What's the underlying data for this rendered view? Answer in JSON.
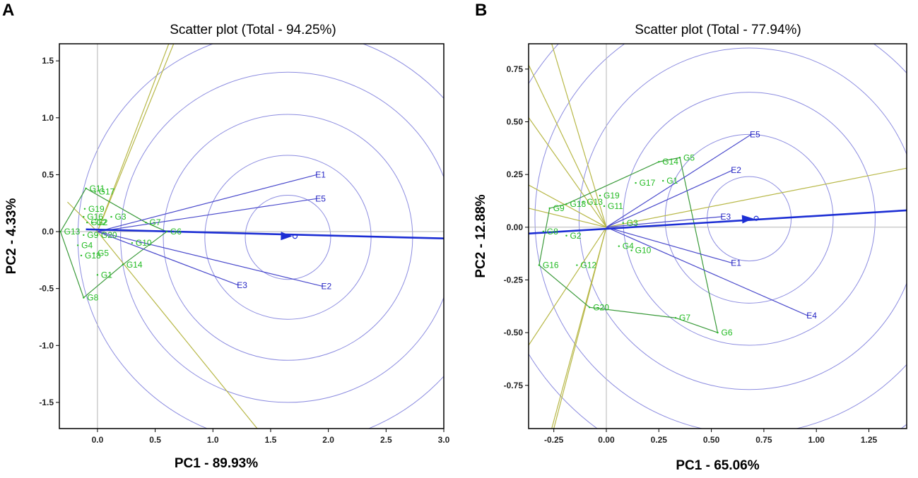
{
  "chart_data": [
    {
      "panel": "A",
      "type": "scatter",
      "subtype": "gge-biplot-which-won-where",
      "title": "Scatter plot (Total - 94.25%)",
      "xlabel": "PC1 - 89.93%",
      "ylabel": "PC2 - 4.33%",
      "xlim": [
        -0.33,
        3.0
      ],
      "ylim": [
        -1.73,
        1.65
      ],
      "xticks": [
        {
          "v": 0,
          "t": "0.0"
        },
        {
          "v": 0.5,
          "t": "0.5"
        },
        {
          "v": 1,
          "t": "1.0"
        },
        {
          "v": 1.5,
          "t": "1.5"
        },
        {
          "v": 2,
          "t": "2.0"
        },
        {
          "v": 2.5,
          "t": "2.5"
        },
        {
          "v": 3,
          "t": "3.0"
        }
      ],
      "yticks": [
        {
          "v": -1.5,
          "t": "-1.5"
        },
        {
          "v": -1,
          "t": "-1.0"
        },
        {
          "v": -0.5,
          "t": "-0.5"
        },
        {
          "v": 0,
          "t": "0.0"
        },
        {
          "v": 0.5,
          "t": "0.5"
        },
        {
          "v": 1,
          "t": "1.0"
        },
        {
          "v": 1.5,
          "t": "1.5"
        }
      ],
      "circle_center": [
        1.65,
        -0.05
      ],
      "circle_radii": [
        0.37,
        0.72,
        1.08,
        1.45,
        1.82
      ],
      "genotypes": [
        {
          "label": "G11",
          "x": -0.1,
          "y": 0.38
        },
        {
          "label": "G17",
          "x": -0.02,
          "y": 0.35
        },
        {
          "label": "G19",
          "x": -0.11,
          "y": 0.2
        },
        {
          "label": "G16",
          "x": -0.12,
          "y": 0.13
        },
        {
          "label": "G3",
          "x": 0.12,
          "y": 0.13
        },
        {
          "label": "G12",
          "x": -0.09,
          "y": 0.08
        },
        {
          "label": "G2",
          "x": -0.04,
          "y": 0.08
        },
        {
          "label": "G7",
          "x": 0.42,
          "y": 0.08
        },
        {
          "label": "G6",
          "x": 0.6,
          "y": 0.0
        },
        {
          "label": "G13",
          "x": -0.32,
          "y": 0.0
        },
        {
          "label": "G9",
          "x": -0.12,
          "y": -0.03
        },
        {
          "label": "G20",
          "x": 0.0,
          "y": -0.03
        },
        {
          "label": "G10",
          "x": 0.3,
          "y": -0.1
        },
        {
          "label": "G4",
          "x": -0.17,
          "y": -0.12
        },
        {
          "label": "G18",
          "x": -0.14,
          "y": -0.21
        },
        {
          "label": "G5",
          "x": -0.03,
          "y": -0.19
        },
        {
          "label": "G14",
          "x": 0.22,
          "y": -0.29
        },
        {
          "label": "G1",
          "x": 0.0,
          "y": -0.38
        },
        {
          "label": "G8",
          "x": -0.12,
          "y": -0.58
        }
      ],
      "environments": [
        {
          "label": "E1",
          "x": 1.9,
          "y": 0.5
        },
        {
          "label": "E5",
          "x": 1.9,
          "y": 0.29
        },
        {
          "label": "E3",
          "x": 1.22,
          "y": -0.47
        },
        {
          "label": "E2",
          "x": 1.95,
          "y": -0.48
        }
      ],
      "hull": [
        "G11",
        "G7",
        "G6",
        "G14",
        "G8",
        "G13"
      ],
      "sectors": [
        [
          0.78,
          1.95
        ],
        [
          0.73,
          1.95
        ],
        [
          -0.26,
          0.26
        ],
        [
          1.4,
          -1.75
        ]
      ],
      "ate": {
        "from": [
          -0.1,
          0.02
        ],
        "to": [
          3.0,
          -0.06
        ],
        "marker": [
          1.65,
          -0.04
        ]
      }
    },
    {
      "panel": "B",
      "type": "scatter",
      "subtype": "gge-biplot-which-won-where",
      "title": "Scatter plot (Total - 77.94%)",
      "xlabel": "PC1 - 65.06%",
      "ylabel": "PC2 - 12.88%",
      "xlim": [
        -0.37,
        1.43
      ],
      "ylim": [
        -0.955,
        0.87
      ],
      "xticks": [
        {
          "v": -0.25,
          "t": "-0.25"
        },
        {
          "v": 0,
          "t": "0.00"
        },
        {
          "v": 0.25,
          "t": "0.25"
        },
        {
          "v": 0.5,
          "t": "0.50"
        },
        {
          "v": 0.75,
          "t": "0.75"
        },
        {
          "v": 1,
          "t": "1.00"
        },
        {
          "v": 1.25,
          "t": "1.25"
        }
      ],
      "yticks": [
        {
          "v": -0.75,
          "t": "-0.75"
        },
        {
          "v": -0.5,
          "t": "-0.50"
        },
        {
          "v": -0.25,
          "t": "-0.25"
        },
        {
          "v": 0,
          "t": "0.00"
        },
        {
          "v": 0.25,
          "t": "0.25"
        },
        {
          "v": 0.5,
          "t": "0.50"
        },
        {
          "v": 0.75,
          "t": "0.75"
        }
      ],
      "circle_center": [
        0.68,
        0.04
      ],
      "circle_radii": [
        0.2,
        0.4,
        0.6,
        0.81,
        1.02,
        1.23
      ],
      "genotypes": [
        {
          "label": "G14",
          "x": 0.25,
          "y": 0.31
        },
        {
          "label": "G5",
          "x": 0.35,
          "y": 0.33
        },
        {
          "label": "G17",
          "x": 0.14,
          "y": 0.21
        },
        {
          "label": "G1",
          "x": 0.27,
          "y": 0.22
        },
        {
          "label": "G19",
          "x": -0.03,
          "y": 0.15
        },
        {
          "label": "G13",
          "x": -0.11,
          "y": 0.12
        },
        {
          "label": "G18",
          "x": -0.19,
          "y": 0.11
        },
        {
          "label": "G11",
          "x": -0.01,
          "y": 0.1
        },
        {
          "label": "G9",
          "x": -0.27,
          "y": 0.09
        },
        {
          "label": "G3",
          "x": 0.08,
          "y": 0.02
        },
        {
          "label": "G8",
          "x": -0.3,
          "y": -0.02
        },
        {
          "label": "G2",
          "x": -0.19,
          "y": -0.04
        },
        {
          "label": "G4",
          "x": 0.06,
          "y": -0.09
        },
        {
          "label": "G10",
          "x": 0.12,
          "y": -0.11
        },
        {
          "label": "G16",
          "x": -0.32,
          "y": -0.18
        },
        {
          "label": "G12",
          "x": -0.14,
          "y": -0.18
        },
        {
          "label": "G20",
          "x": -0.08,
          "y": -0.38
        },
        {
          "label": "G7",
          "x": 0.33,
          "y": -0.43
        },
        {
          "label": "G6",
          "x": 0.53,
          "y": -0.5
        }
      ],
      "environments": [
        {
          "label": "E5",
          "x": 0.69,
          "y": 0.44
        },
        {
          "label": "E2",
          "x": 0.6,
          "y": 0.27
        },
        {
          "label": "E3",
          "x": 0.55,
          "y": 0.05
        },
        {
          "label": "E1",
          "x": 0.6,
          "y": -0.17
        },
        {
          "label": "E4",
          "x": 0.96,
          "y": -0.42
        }
      ],
      "hull": [
        "G14",
        "G5",
        "G6",
        "G7",
        "G20",
        "G16",
        "G9",
        "G18"
      ],
      "sectors": [
        [
          -0.37,
          0.77
        ],
        [
          -0.37,
          0.52
        ],
        [
          -0.37,
          0.2
        ],
        [
          -0.37,
          0.09
        ],
        [
          -0.37,
          -0.56
        ],
        [
          -0.26,
          0.87
        ],
        [
          1.43,
          0.28
        ],
        [
          -0.26,
          -0.955
        ],
        [
          -0.25,
          -0.955
        ]
      ],
      "ate": {
        "from": [
          -0.37,
          -0.03
        ],
        "to": [
          1.43,
          0.08
        ],
        "marker": [
          0.68,
          0.04
        ]
      }
    }
  ],
  "labels": {
    "panel_a": "A",
    "panel_b": "B"
  }
}
